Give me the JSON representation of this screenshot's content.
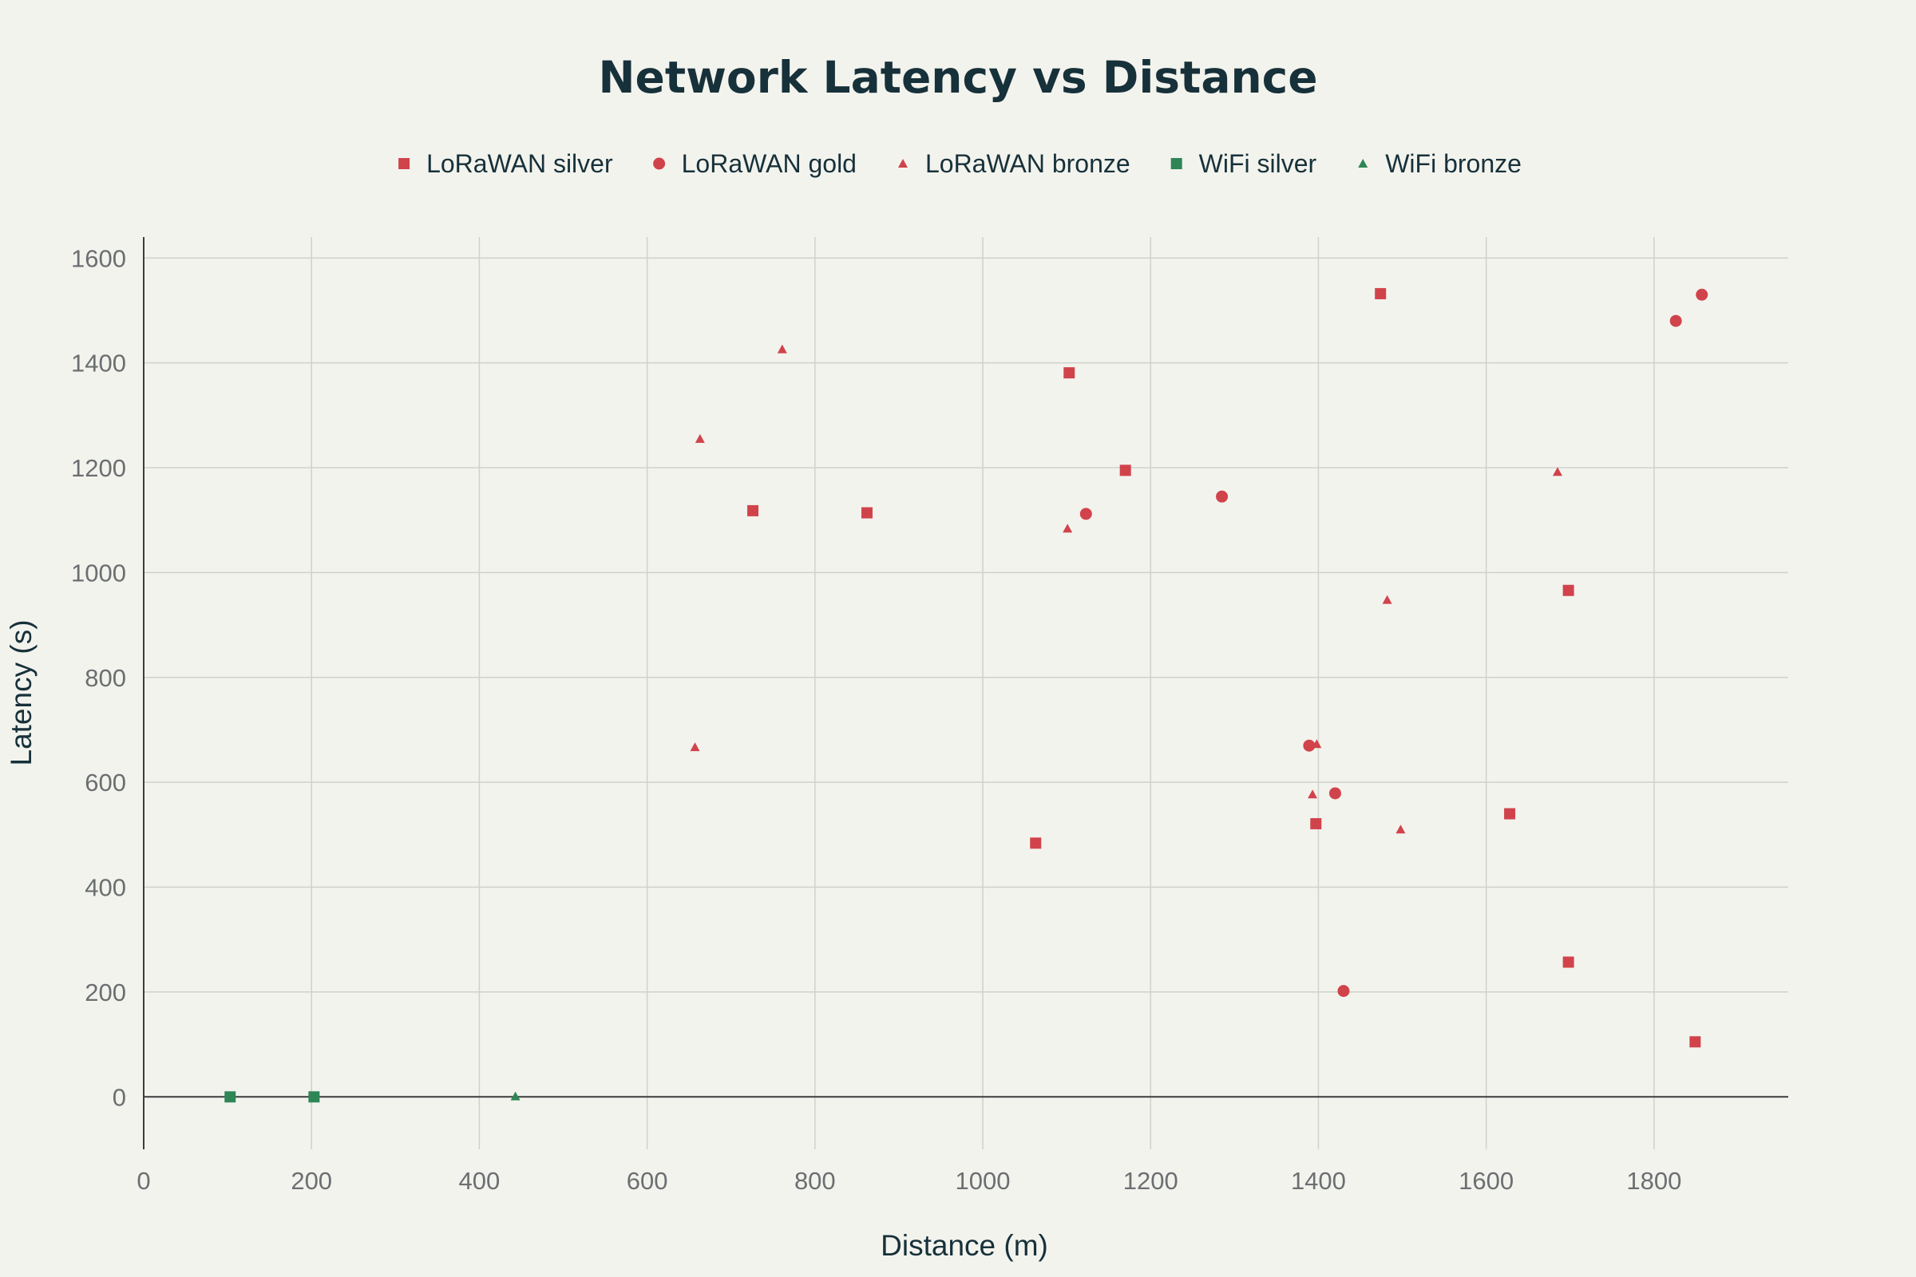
{
  "chart_data": {
    "type": "scatter",
    "title": "Network Latency vs Distance",
    "xlabel": "Distance (m)",
    "ylabel": "Latency (s)",
    "xlim": [
      0,
      1960
    ],
    "ylim": [
      -100,
      1640
    ],
    "xticks": [
      0,
      200,
      400,
      600,
      800,
      1000,
      1200,
      1400,
      1600,
      1800
    ],
    "yticks": [
      0,
      200,
      400,
      600,
      800,
      1000,
      1200,
      1400,
      1600
    ],
    "grid": true,
    "legend_position": "top-center",
    "series": [
      {
        "name": "LoRaWAN silver",
        "marker": "square",
        "color": "#d1434b",
        "points": [
          [
            726,
            1118
          ],
          [
            862,
            1114
          ],
          [
            1063,
            484
          ],
          [
            1103,
            1381
          ],
          [
            1170,
            1195
          ],
          [
            1397,
            521
          ],
          [
            1474,
            1532
          ],
          [
            1628,
            540
          ],
          [
            1698,
            966
          ],
          [
            1698,
            257
          ],
          [
            1849,
            105
          ]
        ]
      },
      {
        "name": "LoRaWAN gold",
        "marker": "circle",
        "color": "#d1434b",
        "points": [
          [
            1123,
            1112
          ],
          [
            1285,
            1145
          ],
          [
            1389,
            670
          ],
          [
            1420,
            579
          ],
          [
            1430,
            202
          ],
          [
            1826,
            1480
          ],
          [
            1857,
            1530
          ]
        ]
      },
      {
        "name": "LoRaWAN bronze",
        "marker": "triangle",
        "color": "#d1434b",
        "points": [
          [
            657,
            667
          ],
          [
            663,
            1255
          ],
          [
            761,
            1426
          ],
          [
            1101,
            1084
          ],
          [
            1393,
            577
          ],
          [
            1398,
            673
          ],
          [
            1482,
            948
          ],
          [
            1498,
            510
          ],
          [
            1685,
            1192
          ]
        ]
      },
      {
        "name": "WiFi silver",
        "marker": "square",
        "color": "#2e8656",
        "points": [
          [
            103,
            0
          ],
          [
            203,
            0
          ]
        ]
      },
      {
        "name": "WiFi bronze",
        "marker": "triangle",
        "color": "#2e8656",
        "points": [
          [
            443,
            1
          ]
        ]
      }
    ]
  }
}
